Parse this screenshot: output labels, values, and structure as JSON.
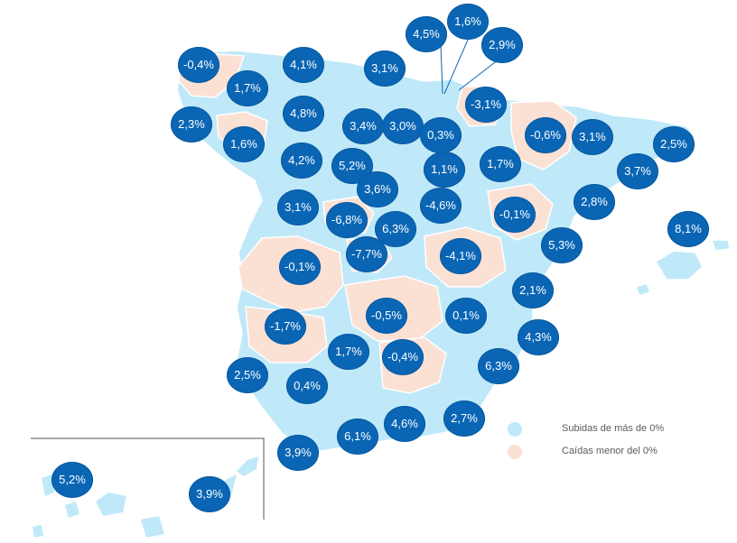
{
  "colors": {
    "rise": "#bfe9f8",
    "fall": "#fbe0d4",
    "bubble": "#0a66b5",
    "border": "#ffffff",
    "frame": "#555555"
  },
  "legend": {
    "rise_label": "Subidas de más de 0%",
    "fall_label": "Caídas menor del 0%"
  },
  "bubbles": [
    "-0,4%",
    "4,1%",
    "3,1%",
    "4,5%",
    "1,6%",
    "2,9%",
    "1,7%",
    "2,3%",
    "1,6%",
    "4,8%",
    "3,4%",
    "3,0%",
    "0,3%",
    "-3,1%",
    "-0,6%",
    "3,1%",
    "2,5%",
    "4,2%",
    "5,2%",
    "3,6%",
    "1,1%",
    "1,7%",
    "3,7%",
    "3,1%",
    "-6,8%",
    "6,3%",
    "-4,6%",
    "-0,1%",
    "2,8%",
    "8,1%",
    "-0,1%",
    "-7,7%",
    "-4,1%",
    "5,3%",
    "2,1%",
    "-0,5%",
    "0,1%",
    "-1,7%",
    "4,3%",
    "1,7%",
    "-0,4%",
    "6,3%",
    "2,5%",
    "0,4%",
    "4,6%",
    "2,7%",
    "6,1%",
    "3,9%",
    "5,2%",
    "3,9%"
  ]
}
